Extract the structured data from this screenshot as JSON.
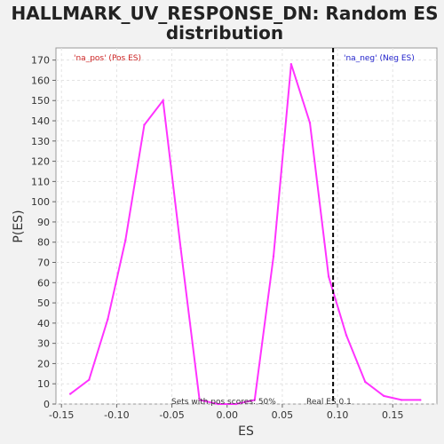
{
  "chart_data": {
    "type": "line",
    "title": "HALLMARK_UV_RESPONSE_DN: Random ES distribution",
    "title_lines": [
      "HALLMARK_UV_RESPONSE_DN: Random ES",
      "distribution"
    ],
    "xlabel": "ES",
    "ylabel": "P(ES)",
    "xlim": [
      -0.155,
      0.19
    ],
    "ylim": [
      0,
      176
    ],
    "x_ticks": [
      -0.15,
      -0.1,
      -0.05,
      0.0,
      0.05,
      0.1,
      0.15
    ],
    "x_tick_labels": [
      "-0.15",
      "-0.10",
      "-0.05",
      "0.00",
      "0.05",
      "0.10",
      "0.15"
    ],
    "y_ticks": [
      0,
      10,
      20,
      30,
      40,
      50,
      60,
      70,
      80,
      90,
      100,
      110,
      120,
      130,
      140,
      150,
      160,
      170
    ],
    "grid": true,
    "series": [
      {
        "color": "#ff33ff",
        "x": [
          -0.142,
          -0.125,
          -0.108,
          -0.092,
          -0.075,
          -0.058,
          -0.042,
          -0.025,
          -0.008,
          0.008,
          0.025,
          0.042,
          0.058,
          0.075,
          0.092,
          0.108,
          0.125,
          0.142,
          0.158,
          0.175
        ],
        "y": [
          5,
          12,
          42,
          81,
          138,
          150,
          77,
          2,
          0,
          0,
          2,
          73,
          168,
          139,
          63,
          34,
          11,
          4,
          2,
          2
        ]
      }
    ],
    "real_es": {
      "x": 0.096,
      "label": "Real ES 0.1",
      "color": "#000000"
    },
    "annotations": {
      "pos_label": "'na_pos' (Pos ES)",
      "pos_color": "#cc2222",
      "neg_label": "'na_neg' (Neg ES)",
      "neg_color": "#2222cc",
      "sets_label": "Sets with pos scores: 50%"
    }
  }
}
